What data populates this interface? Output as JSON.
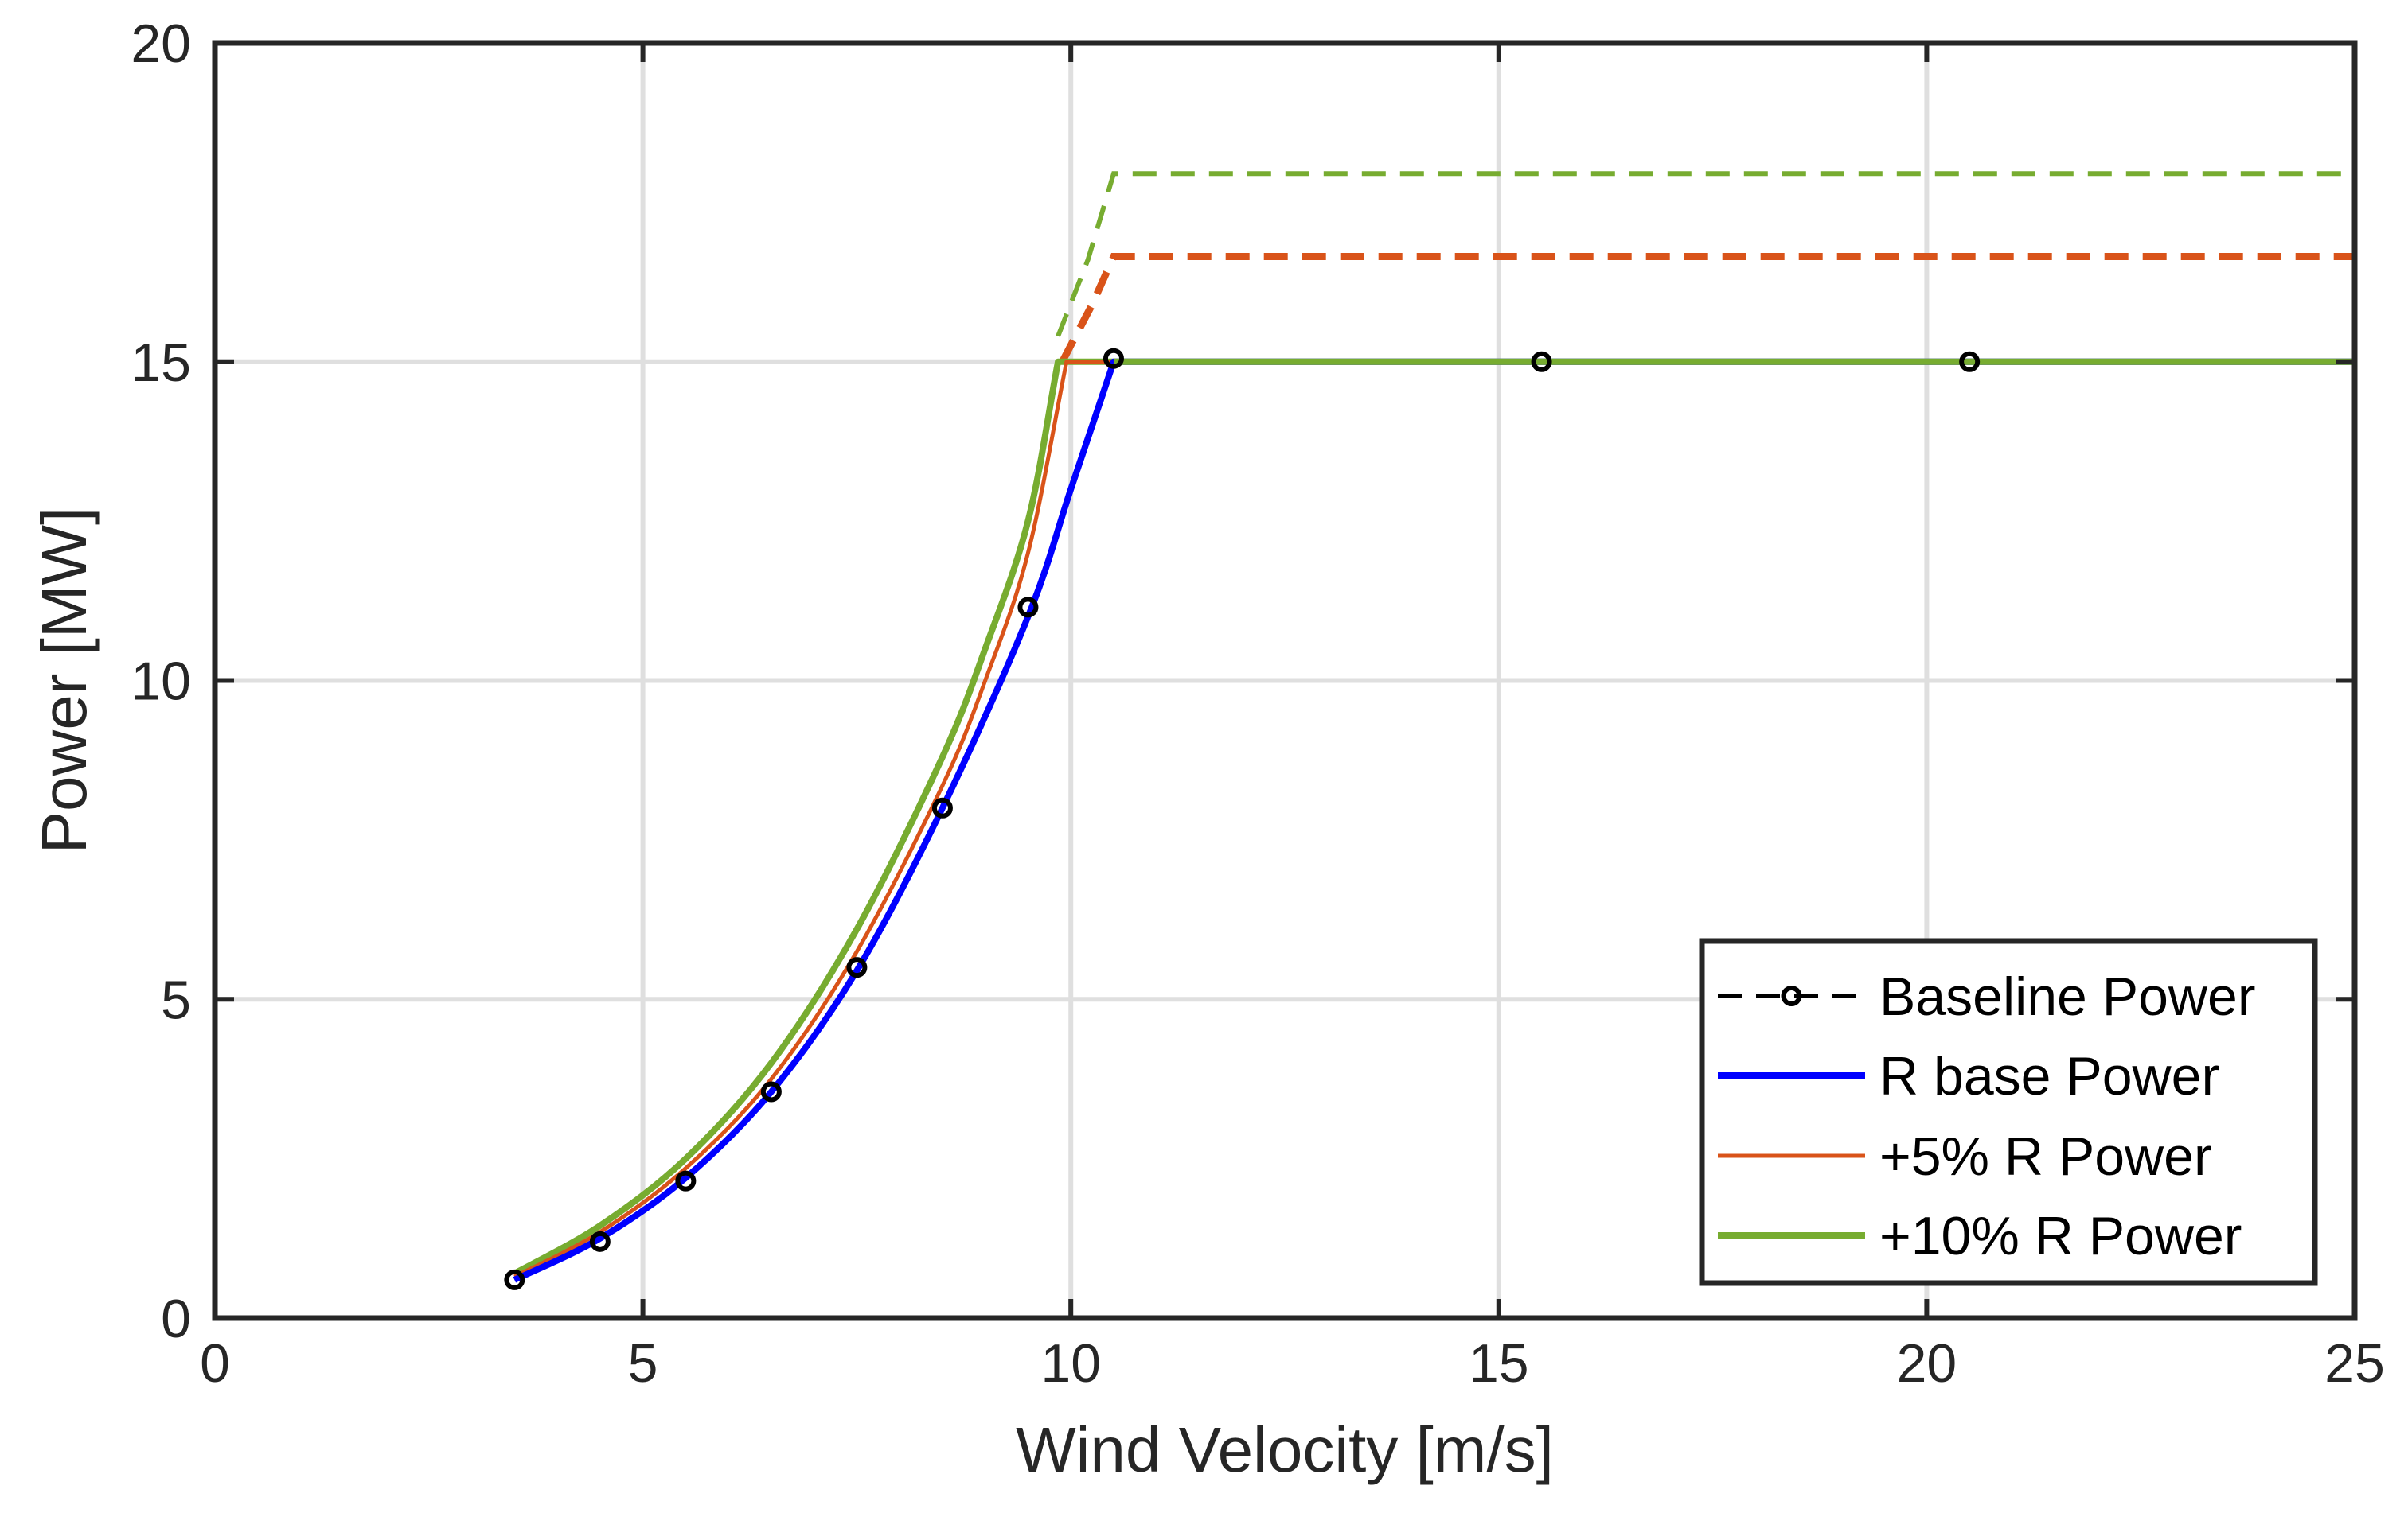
{
  "chart_data": {
    "type": "line",
    "title": "",
    "xlabel": "Wind Velocity [m/s]",
    "ylabel": "Power [MW]",
    "xlim": [
      0,
      25
    ],
    "ylim": [
      0,
      20
    ],
    "xticks": [
      0,
      5,
      10,
      15,
      20,
      25
    ],
    "xtick_labels": [
      "0",
      "5",
      "10",
      "15",
      "20",
      "25"
    ],
    "yticks": [
      0,
      5,
      10,
      15,
      20
    ],
    "ytick_labels": [
      "0",
      "5",
      "10",
      "15",
      "20"
    ],
    "grid": true,
    "legend_position": "bottom-right",
    "series": [
      {
        "name": "Baseline Power",
        "color": "#000000",
        "style": "dashed-markers",
        "x": [
          3.5,
          4.5,
          5.5,
          6.5,
          7.5,
          8.5,
          9.5,
          10.5,
          15.5,
          20.5
        ],
        "y": [
          0.6,
          1.2,
          2.15,
          3.55,
          5.5,
          8.0,
          11.15,
          15.05,
          15.0,
          15.0
        ]
      },
      {
        "name": "R base Power",
        "color": "#0000ff",
        "style": "solid",
        "x": [
          3.5,
          4.5,
          5.5,
          6.5,
          7.5,
          8.5,
          9.5,
          10.0,
          10.5,
          25
        ],
        "y": [
          0.6,
          1.25,
          2.2,
          3.55,
          5.45,
          8.0,
          11.0,
          13.0,
          15.0,
          15.0
        ]
      },
      {
        "name": "+5% R Power",
        "color": "#d95319",
        "style": "solid",
        "dashed_extension": {
          "x": [
            9.9,
            10.25,
            10.5,
            25
          ],
          "y": [
            15.0,
            15.9,
            16.65,
            16.65
          ]
        },
        "x": [
          3.5,
          4.5,
          5.5,
          6.5,
          7.5,
          8.5,
          9.0,
          9.5,
          9.95,
          25
        ],
        "y": [
          0.65,
          1.35,
          2.35,
          3.75,
          5.75,
          8.35,
          10.0,
          12.0,
          15.0,
          15.0
        ]
      },
      {
        "name": "+10% R Power",
        "color": "#77ac30",
        "style": "solid",
        "dashed_extension": {
          "x": [
            9.85,
            10.2,
            10.5,
            25
          ],
          "y": [
            15.4,
            16.6,
            17.95,
            17.95
          ]
        },
        "x": [
          3.5,
          4.5,
          5.5,
          6.5,
          7.5,
          8.5,
          9.0,
          9.5,
          9.85,
          25
        ],
        "y": [
          0.7,
          1.45,
          2.5,
          4.0,
          6.1,
          8.8,
          10.5,
          12.5,
          15.0,
          15.0
        ]
      }
    ]
  }
}
